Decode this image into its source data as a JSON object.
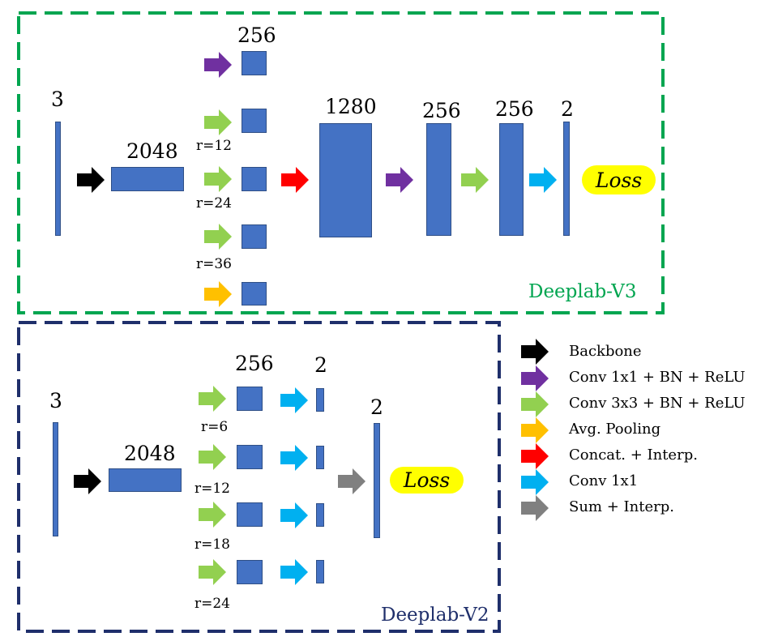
{
  "v3": {
    "title": "Deeplab-V3",
    "title_color": "#00a550",
    "input_ch": "3",
    "backbone_ch": "2048",
    "aspp_ch": "256",
    "rates": [
      "r=12",
      "r=24",
      "r=36"
    ],
    "concat_ch": "1280",
    "conv1_ch": "256",
    "conv2_ch": "256",
    "out_ch": "2",
    "loss": "Loss"
  },
  "v2": {
    "title": "Deeplab-V2",
    "title_color": "#1f2f6b",
    "input_ch": "3",
    "backbone_ch": "2048",
    "branch_ch": "256",
    "branch_out_ch": "2",
    "rates": [
      "r=6",
      "r=12",
      "r=18",
      "r=24"
    ],
    "out_ch": "2",
    "loss": "Loss"
  },
  "legend": [
    {
      "label": "Backbone",
      "color": "#000000"
    },
    {
      "label": "Conv 1x1 + BN + ReLU",
      "color": "#7030a0"
    },
    {
      "label": "Conv 3x3 + BN + ReLU",
      "color": "#92d050"
    },
    {
      "label": "Avg. Pooling",
      "color": "#ffc000"
    },
    {
      "label": "Concat. + Interp.",
      "color": "#ff0000"
    },
    {
      "label": "Conv 1x1",
      "color": "#00b0f0"
    },
    {
      "label": "Sum + Interp.",
      "color": "#808080"
    }
  ],
  "colors": {
    "block": "#4472c4",
    "v3_frame": "#00a550",
    "v2_frame": "#1f2f6b",
    "loss_bg": "#ffff00"
  }
}
